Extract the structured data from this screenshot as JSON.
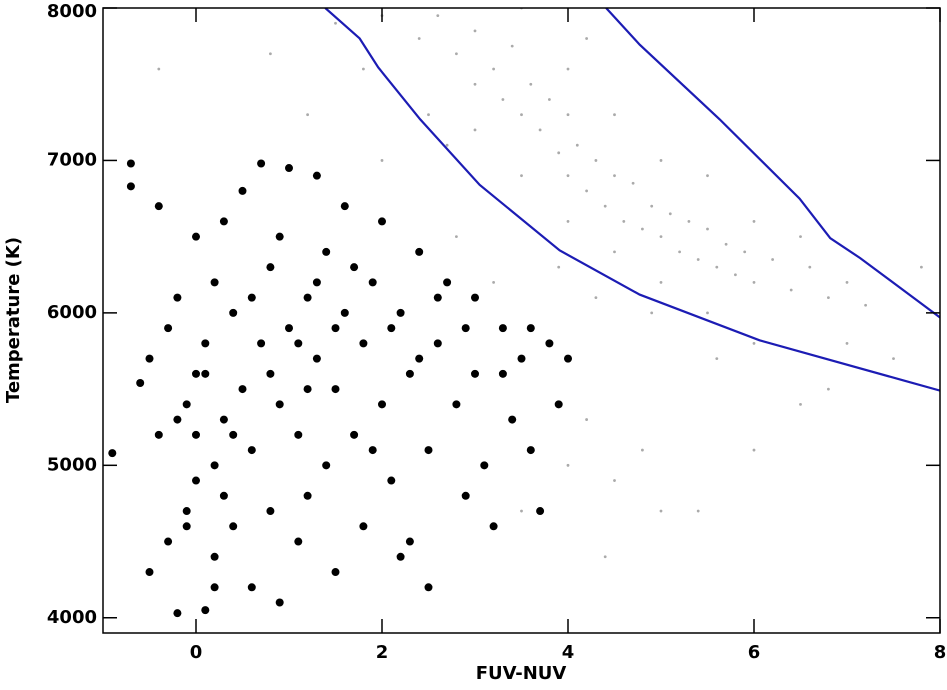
{
  "chart_data": {
    "type": "scatter",
    "x_label": "FUV-NUV",
    "y_label": "Temperature (K)",
    "xlim": [
      -1,
      8
    ],
    "ylim": [
      3900,
      8000
    ],
    "xticks": [
      0,
      2,
      4,
      6,
      8
    ],
    "yticks": [
      4000,
      5000,
      6000,
      7000,
      8000
    ],
    "grid": false,
    "series": [
      {
        "type": "scatter",
        "color": "#aaaaaa",
        "size": 1.4,
        "x": [
          1.5,
          2.0,
          2.4,
          2.6,
          2.8,
          3.0,
          3.2,
          3.3,
          3.4,
          3.5,
          3.6,
          3.7,
          3.8,
          3.9,
          4.0,
          4.0,
          4.1,
          4.2,
          4.3,
          4.4,
          4.5,
          4.6,
          4.7,
          4.8,
          4.9,
          5.0,
          5.1,
          5.2,
          5.3,
          5.4,
          5.5,
          5.6,
          5.7,
          5.8,
          5.9,
          6.0,
          6.2,
          6.4,
          6.6,
          6.8,
          7.0,
          7.2,
          3.0,
          3.5,
          4.0,
          4.5,
          5.0,
          5.5,
          6.0,
          2.5,
          2.0,
          1.8,
          1.2,
          0.8,
          -0.4,
          2.8,
          3.2,
          3.8,
          4.2,
          4.5,
          4.8,
          5.0,
          5.4,
          6.0,
          6.5,
          7.0,
          7.5,
          4.0,
          4.5,
          5.0,
          5.5,
          6.0,
          6.5,
          3.5,
          4.2,
          3.0,
          2.7,
          3.9,
          4.3,
          4.9,
          5.6,
          6.8,
          7.8,
          4.4,
          3.5,
          4.0
        ],
        "values": [
          7900,
          7950,
          7800,
          7950,
          7700,
          7850,
          7600,
          7400,
          7750,
          7300,
          7500,
          7200,
          7400,
          7050,
          7300,
          6900,
          7100,
          6800,
          7000,
          6700,
          6900,
          6600,
          6850,
          6550,
          6700,
          6500,
          6650,
          6400,
          6600,
          6350,
          6550,
          6300,
          6450,
          6250,
          6400,
          6200,
          6350,
          6150,
          6300,
          6100,
          6200,
          6050,
          7200,
          6900,
          6600,
          6400,
          6200,
          6000,
          5800,
          7300,
          7000,
          7600,
          7300,
          7700,
          7600,
          6500,
          6200,
          5800,
          5300,
          4900,
          5100,
          4700,
          4700,
          5100,
          5400,
          5800,
          5700,
          7600,
          7300,
          7000,
          6900,
          6600,
          6500,
          8000,
          7800,
          7500,
          7100,
          6300,
          6100,
          6000,
          5700,
          5500,
          6300,
          4400,
          4700,
          5000
        ]
      },
      {
        "type": "scatter",
        "color": "#000000",
        "size": 4,
        "x": [
          -0.9,
          -0.7,
          -0.7,
          -0.6,
          -0.5,
          -0.4,
          -0.4,
          -0.3,
          -0.3,
          -0.2,
          -0.2,
          -0.1,
          -0.1,
          0.0,
          0.0,
          0.0,
          0.1,
          0.1,
          0.2,
          0.2,
          0.2,
          0.3,
          0.3,
          0.4,
          0.4,
          0.5,
          0.5,
          0.6,
          0.6,
          0.7,
          0.7,
          0.8,
          0.8,
          0.9,
          0.9,
          1.0,
          1.0,
          1.1,
          1.1,
          1.2,
          1.2,
          1.3,
          1.3,
          1.4,
          1.4,
          1.5,
          1.5,
          1.6,
          1.6,
          1.7,
          1.8,
          1.8,
          1.9,
          2.0,
          2.0,
          2.1,
          2.2,
          2.2,
          2.3,
          2.4,
          2.5,
          2.5,
          2.6,
          2.7,
          2.8,
          2.9,
          3.0,
          3.0,
          3.1,
          3.2,
          3.3,
          3.4,
          3.5,
          3.6,
          3.7,
          3.8,
          3.9,
          4.0,
          -0.5,
          0.1,
          0.3,
          0.6,
          0.9,
          1.2,
          1.5,
          1.7,
          2.1,
          2.4,
          2.6,
          2.9,
          3.3,
          3.6,
          0.0,
          -0.2,
          0.4,
          0.8,
          1.1,
          1.3,
          1.9,
          2.3,
          0.2,
          -0.1
        ],
        "values": [
          5080,
          6980,
          6830,
          5540,
          4300,
          6700,
          5200,
          4500,
          5900,
          4030,
          6100,
          4700,
          5400,
          4900,
          5200,
          6500,
          4050,
          5600,
          4400,
          5000,
          6200,
          4800,
          5300,
          6000,
          4600,
          5500,
          6800,
          4200,
          5100,
          5800,
          6980,
          4700,
          6300,
          5400,
          4100,
          5900,
          6950,
          4500,
          5200,
          6100,
          4800,
          5700,
          6900,
          5000,
          6400,
          5500,
          4300,
          6000,
          6700,
          5200,
          5800,
          4600,
          6200,
          5400,
          6600,
          4900,
          6000,
          4400,
          5600,
          6400,
          5100,
          4200,
          5800,
          6200,
          5400,
          4800,
          6100,
          5600,
          5000,
          4600,
          5900,
          5300,
          5700,
          5100,
          4700,
          5800,
          5400,
          5700,
          5700,
          5800,
          6600,
          6100,
          6500,
          5500,
          5900,
          6300,
          5900,
          5700,
          6100,
          5900,
          5600,
          5900,
          5600,
          5300,
          5200,
          5600,
          5800,
          6200,
          5100,
          4500,
          4200,
          4600
        ]
      },
      {
        "type": "line",
        "color": "#1c1cb4",
        "x": [
          1.39,
          1.76,
          1.96,
          2.41,
          3.05,
          3.91,
          4.77,
          6.06,
          8.0
        ],
        "values": [
          8000,
          7800,
          7610,
          7270,
          6840,
          6410,
          6120,
          5820,
          5490
        ]
      },
      {
        "type": "line",
        "color": "#1c1cb4",
        "x": [
          4.41,
          4.77,
          5.63,
          6.49,
          6.82,
          7.14,
          8.0
        ],
        "values": [
          8000,
          7760,
          7270,
          6750,
          6490,
          6360,
          5970
        ]
      }
    ]
  }
}
